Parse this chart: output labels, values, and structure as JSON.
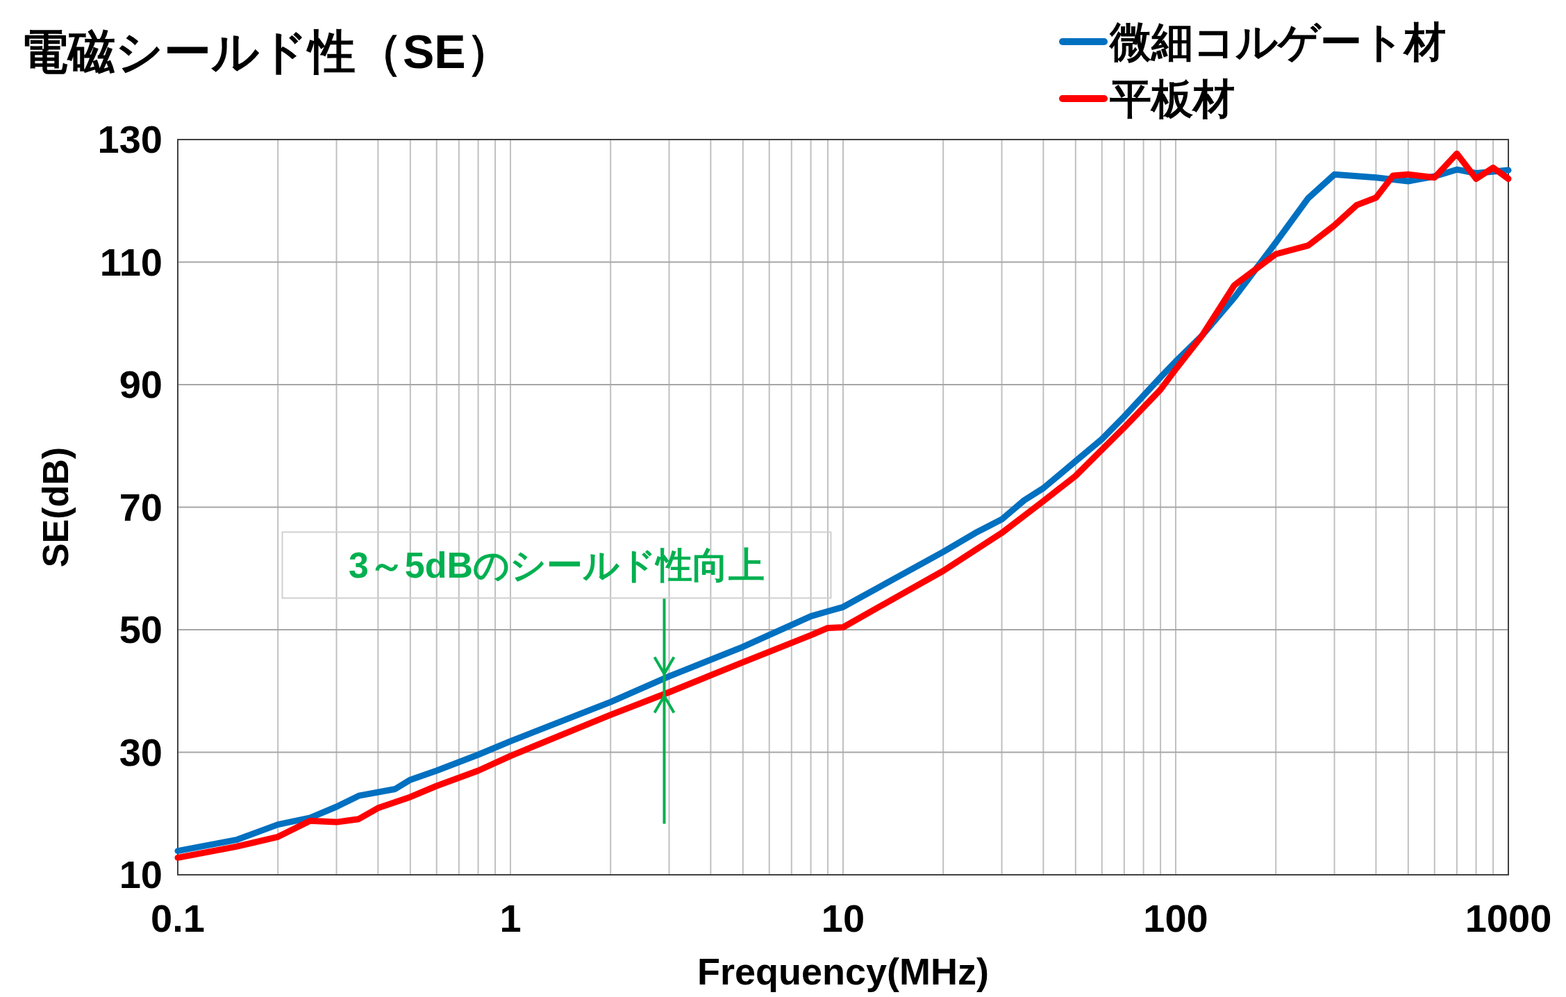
{
  "chart_data": {
    "type": "line",
    "title": "電磁シールド性（SE）",
    "xlabel": "Frequency(MHz)",
    "ylabel": "SE(dB)",
    "log": "x",
    "xlim": [
      0.1,
      1000
    ],
    "xticks": [
      0.1,
      1,
      10,
      100,
      1000
    ],
    "ylim": [
      10,
      130
    ],
    "yticks": [
      10,
      30,
      50,
      70,
      90,
      110,
      130
    ],
    "grid": true,
    "legend": "top right",
    "line_style": "solid",
    "marker": "none",
    "annotations": [
      {
        "text": "3～5dBのシールド性向上",
        "x": 2.9,
        "y": 41
      }
    ],
    "series": [
      {
        "name": "微細コルゲート材",
        "color": "#0070c0",
        "x": [
          0.1,
          0.15,
          0.2,
          0.25,
          0.3,
          0.35,
          0.45,
          0.5,
          0.6,
          0.8,
          1,
          2,
          3,
          5,
          8,
          9,
          10,
          20,
          25,
          30,
          35,
          40,
          50,
          60,
          70,
          90,
          100,
          120,
          150,
          200,
          250,
          300,
          400,
          500,
          600,
          700,
          800,
          1000
        ],
        "values": [
          13.9,
          15.7,
          18.2,
          19.3,
          21.1,
          22.9,
          24.0,
          25.5,
          27.0,
          29.6,
          31.8,
          38.2,
          42.4,
          47.2,
          52.2,
          53.0,
          53.7,
          62.7,
          65.8,
          68.0,
          71.1,
          73.1,
          77.5,
          81.1,
          84.8,
          91.2,
          93.8,
          98.0,
          104.2,
          113.2,
          120.4,
          124.3,
          123.8,
          123.2,
          124.0,
          125.1,
          124.5,
          125.0
        ]
      },
      {
        "name": "平板材",
        "color": "#ff0000",
        "x": [
          0.1,
          0.15,
          0.2,
          0.25,
          0.3,
          0.35,
          0.4,
          0.5,
          0.6,
          0.8,
          1,
          2,
          3,
          5,
          8,
          9,
          10,
          15,
          20,
          30,
          40,
          50,
          70,
          90,
          100,
          120,
          150,
          200,
          250,
          300,
          350,
          400,
          450,
          500,
          600,
          700,
          800,
          900,
          1000
        ],
        "values": [
          12.8,
          14.6,
          16.2,
          18.8,
          18.6,
          19.1,
          20.9,
          22.7,
          24.5,
          27.0,
          29.4,
          36.1,
          39.8,
          44.7,
          49.1,
          50.3,
          50.4,
          55.8,
          59.6,
          65.8,
          71.0,
          75.1,
          83.0,
          89.2,
          92.5,
          98.0,
          106.2,
          111.3,
          112.7,
          116.0,
          119.3,
          120.5,
          124.1,
          124.3,
          123.8,
          127.7,
          123.6,
          125.4,
          123.6
        ]
      }
    ]
  }
}
